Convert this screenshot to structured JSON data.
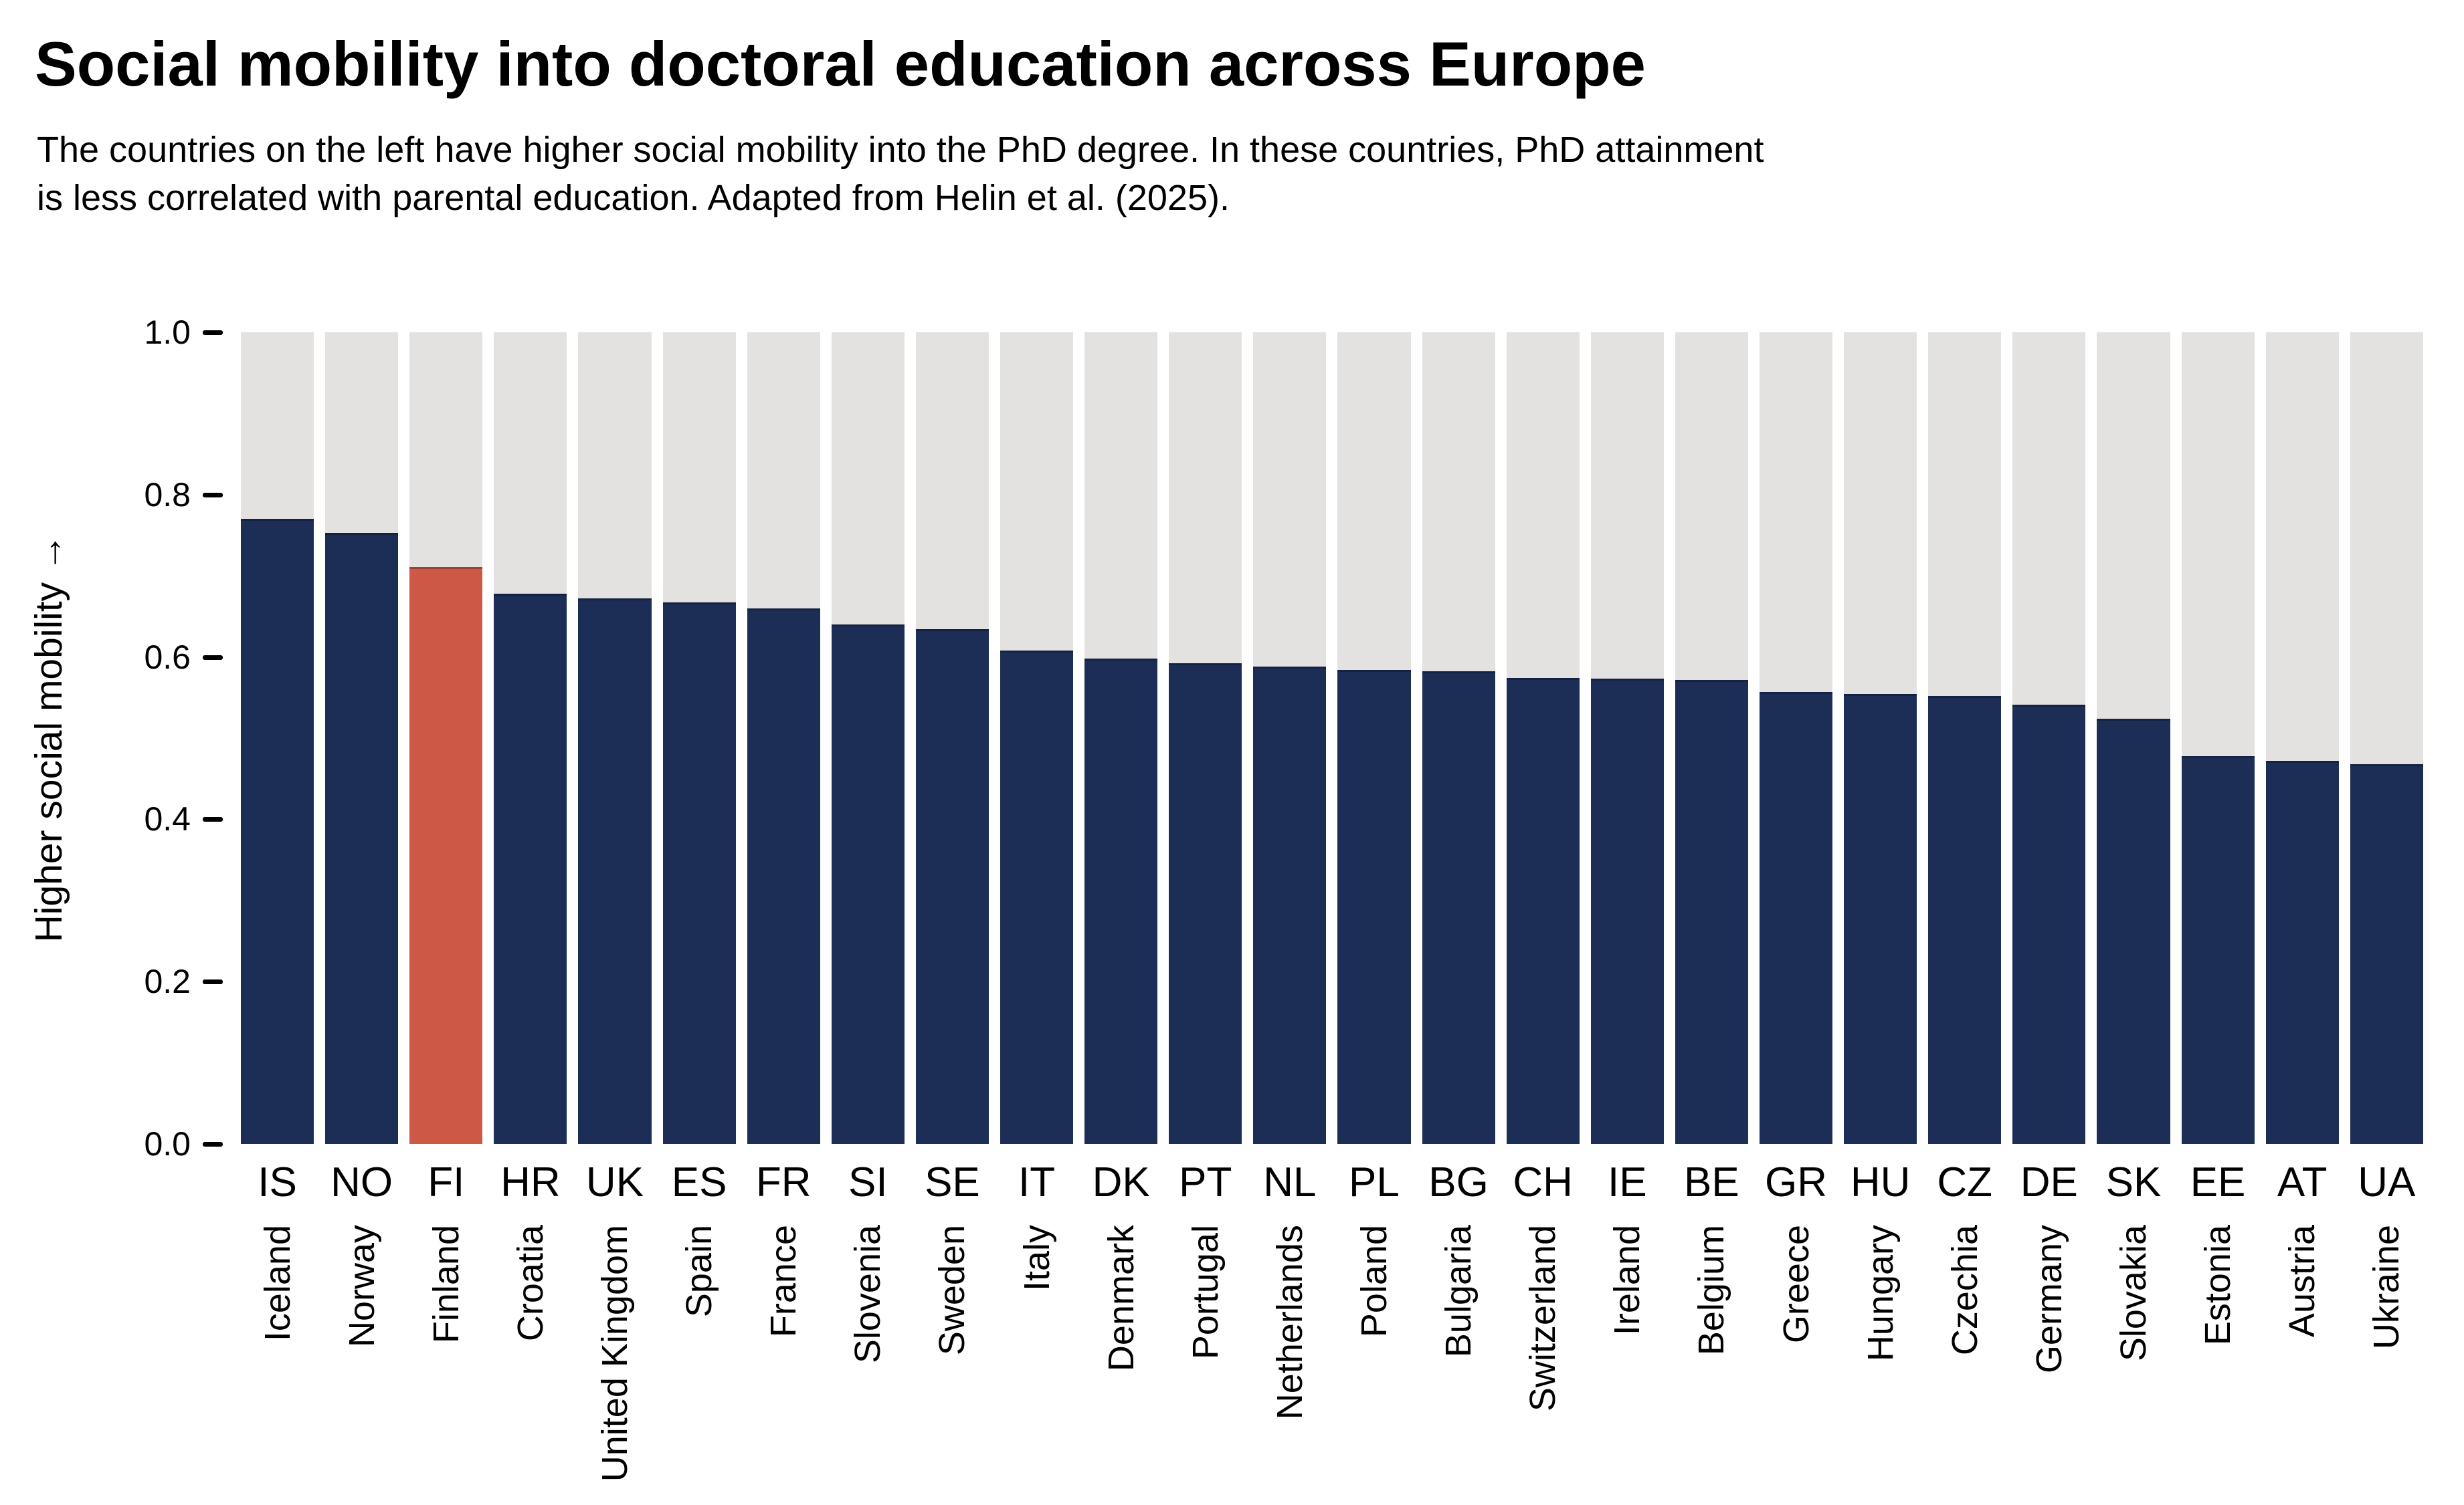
{
  "header": {
    "title": "Social mobility into doctoral education across Europe",
    "subtitle_line1": "The countries on the left have higher social mobility into the PhD degree. In these countries, PhD attainment",
    "subtitle_line2": "is less correlated with parental education. Adapted from Helin et al. (2025)."
  },
  "chart_data": {
    "type": "bar",
    "title": "Social mobility into doctoral education across Europe",
    "xlabel": "",
    "ylabel": "Higher social mobility →",
    "ylim": [
      0.0,
      1.0
    ],
    "y_ticks": [
      0.0,
      0.2,
      0.4,
      0.6,
      0.8,
      1.0
    ],
    "grid": false,
    "legend_position": "none",
    "bar_background_track_to": 1.0,
    "highlight_category": "FI",
    "colors": {
      "bar": "#1C2E55",
      "highlight": "#CE5846",
      "track": "#E3E2E1",
      "background": "#FFFFFF"
    },
    "categories": [
      "IS",
      "NO",
      "FI",
      "HR",
      "UK",
      "ES",
      "FR",
      "SI",
      "SE",
      "IT",
      "DK",
      "PT",
      "NL",
      "PL",
      "BG",
      "CH",
      "IE",
      "BE",
      "GR",
      "HU",
      "CZ",
      "DE",
      "SK",
      "EE",
      "AT",
      "UA"
    ],
    "category_names": [
      "Iceland",
      "Norway",
      "Finland",
      "Croatia",
      "United Kingdom",
      "Spain",
      "France",
      "Slovenia",
      "Sweden",
      "Italy",
      "Denmark",
      "Portugal",
      "Netherlands",
      "Poland",
      "Bulgaria",
      "Switzerland",
      "Ireland",
      "Belgium",
      "Greece",
      "Hungary",
      "Czechia",
      "Germany",
      "Slovakia",
      "Estonia",
      "Austria",
      "Ukraine"
    ],
    "values": [
      0.77,
      0.753,
      0.711,
      0.678,
      0.672,
      0.667,
      0.66,
      0.64,
      0.634,
      0.608,
      0.598,
      0.592,
      0.588,
      0.584,
      0.582,
      0.574,
      0.573,
      0.572,
      0.557,
      0.554,
      0.552,
      0.541,
      0.524,
      0.478,
      0.472,
      0.468
    ]
  }
}
